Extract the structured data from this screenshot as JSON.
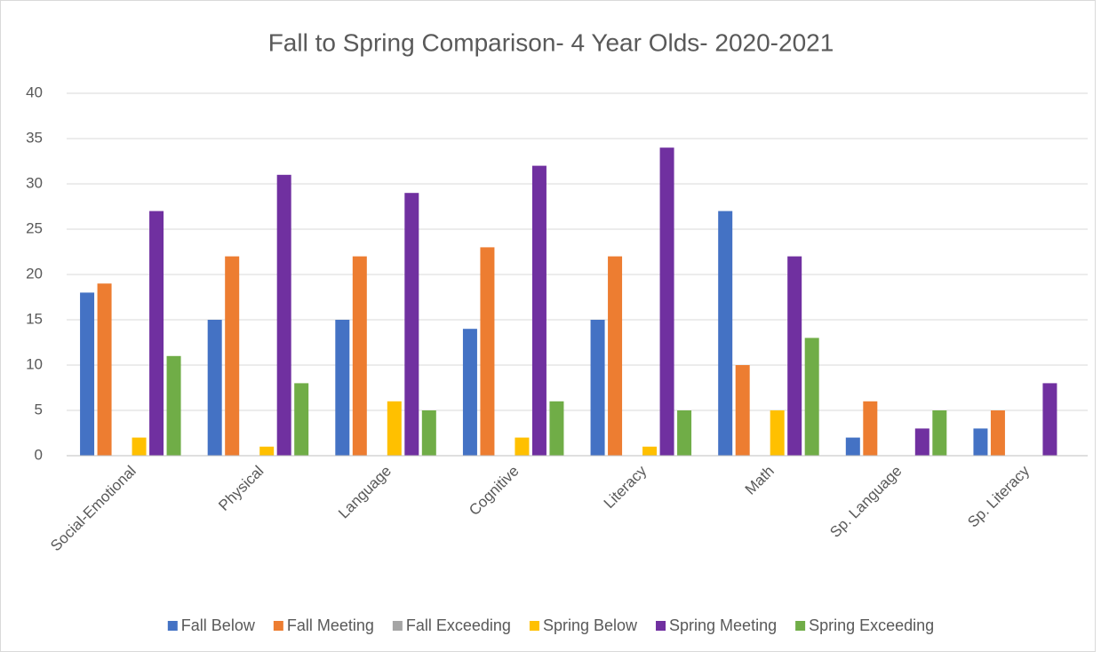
{
  "chart_data": {
    "type": "bar",
    "title": "Fall to Spring Comparison- 4 Year Olds- 2020-2021",
    "categories": [
      "Social-Emotional",
      "Physical",
      "Language",
      "Cognitive",
      "Literacy",
      "Math",
      "Sp. Language",
      "Sp. Literacy"
    ],
    "series": [
      {
        "name": "Fall Below",
        "color": "#4472c4",
        "values": [
          18,
          15,
          15,
          14,
          15,
          27,
          2,
          3
        ]
      },
      {
        "name": "Fall Meeting",
        "color": "#ed7d31",
        "values": [
          19,
          22,
          22,
          23,
          22,
          10,
          6,
          5
        ]
      },
      {
        "name": "Fall Exceeding",
        "color": "#a5a5a5",
        "values": [
          0,
          0,
          0,
          0,
          0,
          0,
          0,
          0
        ]
      },
      {
        "name": "Spring Below",
        "color": "#ffc000",
        "values": [
          2,
          1,
          6,
          2,
          1,
          5,
          0,
          0
        ]
      },
      {
        "name": "Spring Meeting",
        "color": "#7030a0",
        "values": [
          27,
          31,
          29,
          32,
          34,
          22,
          3,
          8
        ]
      },
      {
        "name": "Spring Exceeding",
        "color": "#70ad47",
        "values": [
          11,
          8,
          5,
          6,
          5,
          13,
          5,
          0
        ]
      }
    ],
    "ylim": [
      0,
      40
    ],
    "yticks": [
      0,
      5,
      10,
      15,
      20,
      25,
      30,
      35,
      40
    ],
    "grid": true,
    "legend": "bottom"
  }
}
